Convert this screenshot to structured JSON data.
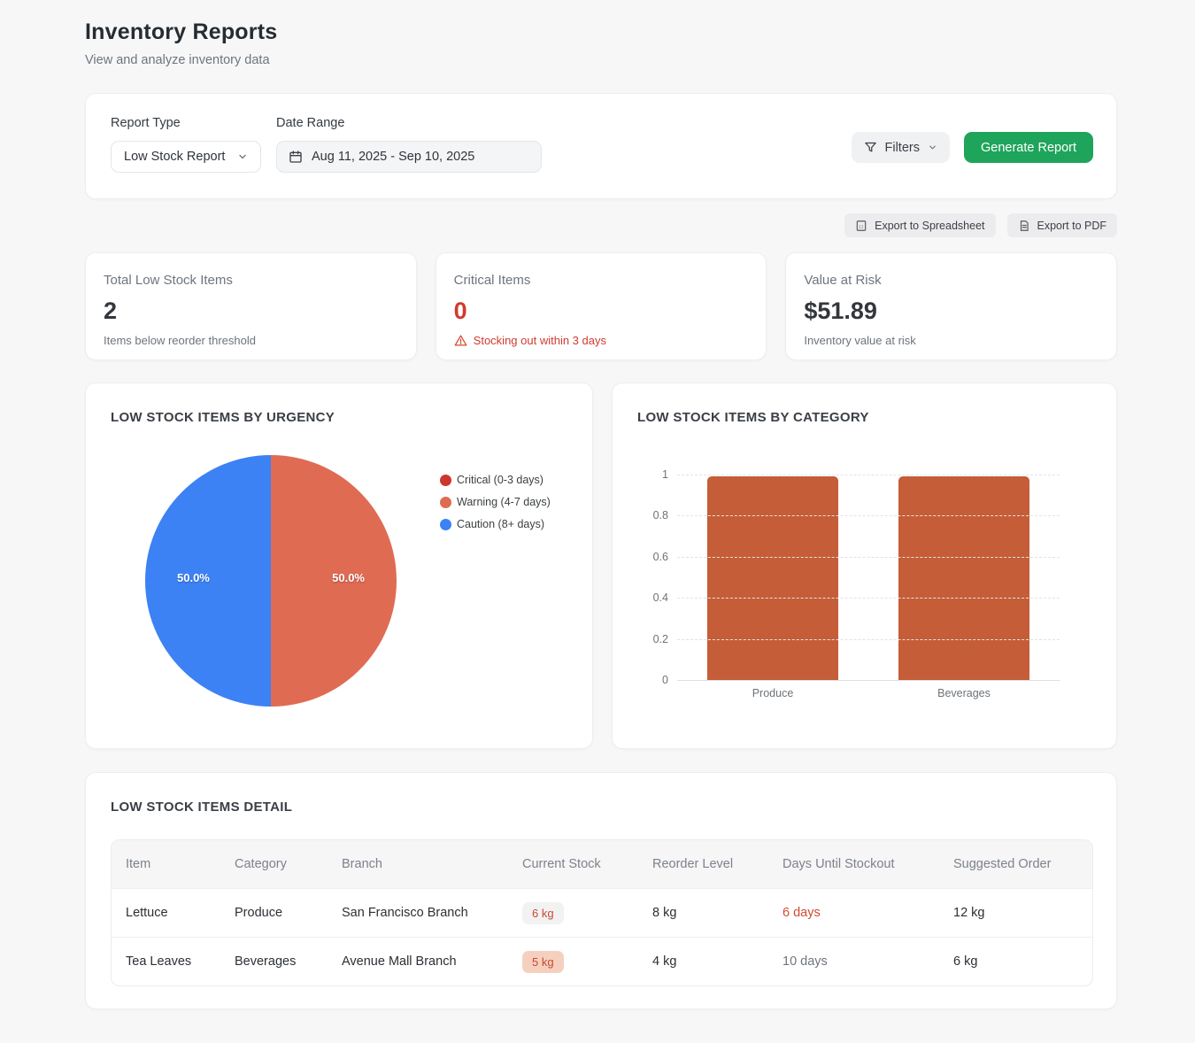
{
  "page": {
    "title": "Inventory Reports",
    "subtitle": "View and analyze inventory data"
  },
  "filters": {
    "report_type_label": "Report Type",
    "report_type_value": "Low Stock Report",
    "date_range_label": "Date Range",
    "date_range_value": "Aug 11, 2025 - Sep 10, 2025",
    "filters_button_label": "Filters",
    "generate_button_label": "Generate Report",
    "generate_button_color": "#1fa45b"
  },
  "export": {
    "spreadsheet_label": "Export to Spreadsheet",
    "pdf_label": "Export to PDF"
  },
  "stats": [
    {
      "label": "Total Low Stock Items",
      "value": "2",
      "caption": "Items below reorder threshold"
    },
    {
      "label": "Critical Items",
      "value": "0",
      "caption": "Stocking out within 3 days",
      "value_color": "#d13b2e",
      "caption_color": "#d8462f"
    },
    {
      "label": "Value at Risk",
      "value": "$51.89",
      "caption": "Inventory value at risk"
    }
  ],
  "chart_data": [
    {
      "type": "pie",
      "title": "LOW STOCK ITEMS BY URGENCY",
      "slices": [
        {
          "label": "Critical (0-3 days)",
          "value": 0,
          "share_pct": 0,
          "pct_label": "",
          "color": "#ce352c"
        },
        {
          "label": "Warning (4-7 days)",
          "value": 1,
          "share_pct": 50,
          "pct_label": "50.0%",
          "color": "#e06b53"
        },
        {
          "label": "Caution (8+ days)",
          "value": 1,
          "share_pct": 50,
          "pct_label": "50.0%",
          "color": "#3c82f5"
        }
      ],
      "legend_position": "right"
    },
    {
      "type": "bar",
      "title": "LOW STOCK ITEMS BY CATEGORY",
      "categories": [
        "Produce",
        "Beverages"
      ],
      "values": [
        1,
        1
      ],
      "bar_color": "#c45d38",
      "ylim": [
        0,
        1
      ],
      "yticks": [
        0,
        0.2,
        0.4,
        0.6,
        0.8,
        1
      ],
      "grid": "horizontal-dashed",
      "xlabel": "",
      "ylabel": ""
    }
  ],
  "table": {
    "title": "LOW STOCK ITEMS DETAIL",
    "columns": [
      "Item",
      "Category",
      "Branch",
      "Current Stock",
      "Reorder Level",
      "Days Until Stockout",
      "Suggested Order"
    ],
    "rows": [
      {
        "item": "Lettuce",
        "category": "Produce",
        "branch": "San Francisco Branch",
        "current_stock": "6 kg",
        "reorder_level": "8 kg",
        "days_until_stockout": "6 days",
        "suggested_order": "12 kg"
      },
      {
        "item": "Tea Leaves",
        "category": "Beverages",
        "branch": "Avenue Mall Branch",
        "current_stock": "5 kg",
        "reorder_level": "4 kg",
        "days_until_stockout": "10 days",
        "suggested_order": "6 kg"
      }
    ]
  }
}
